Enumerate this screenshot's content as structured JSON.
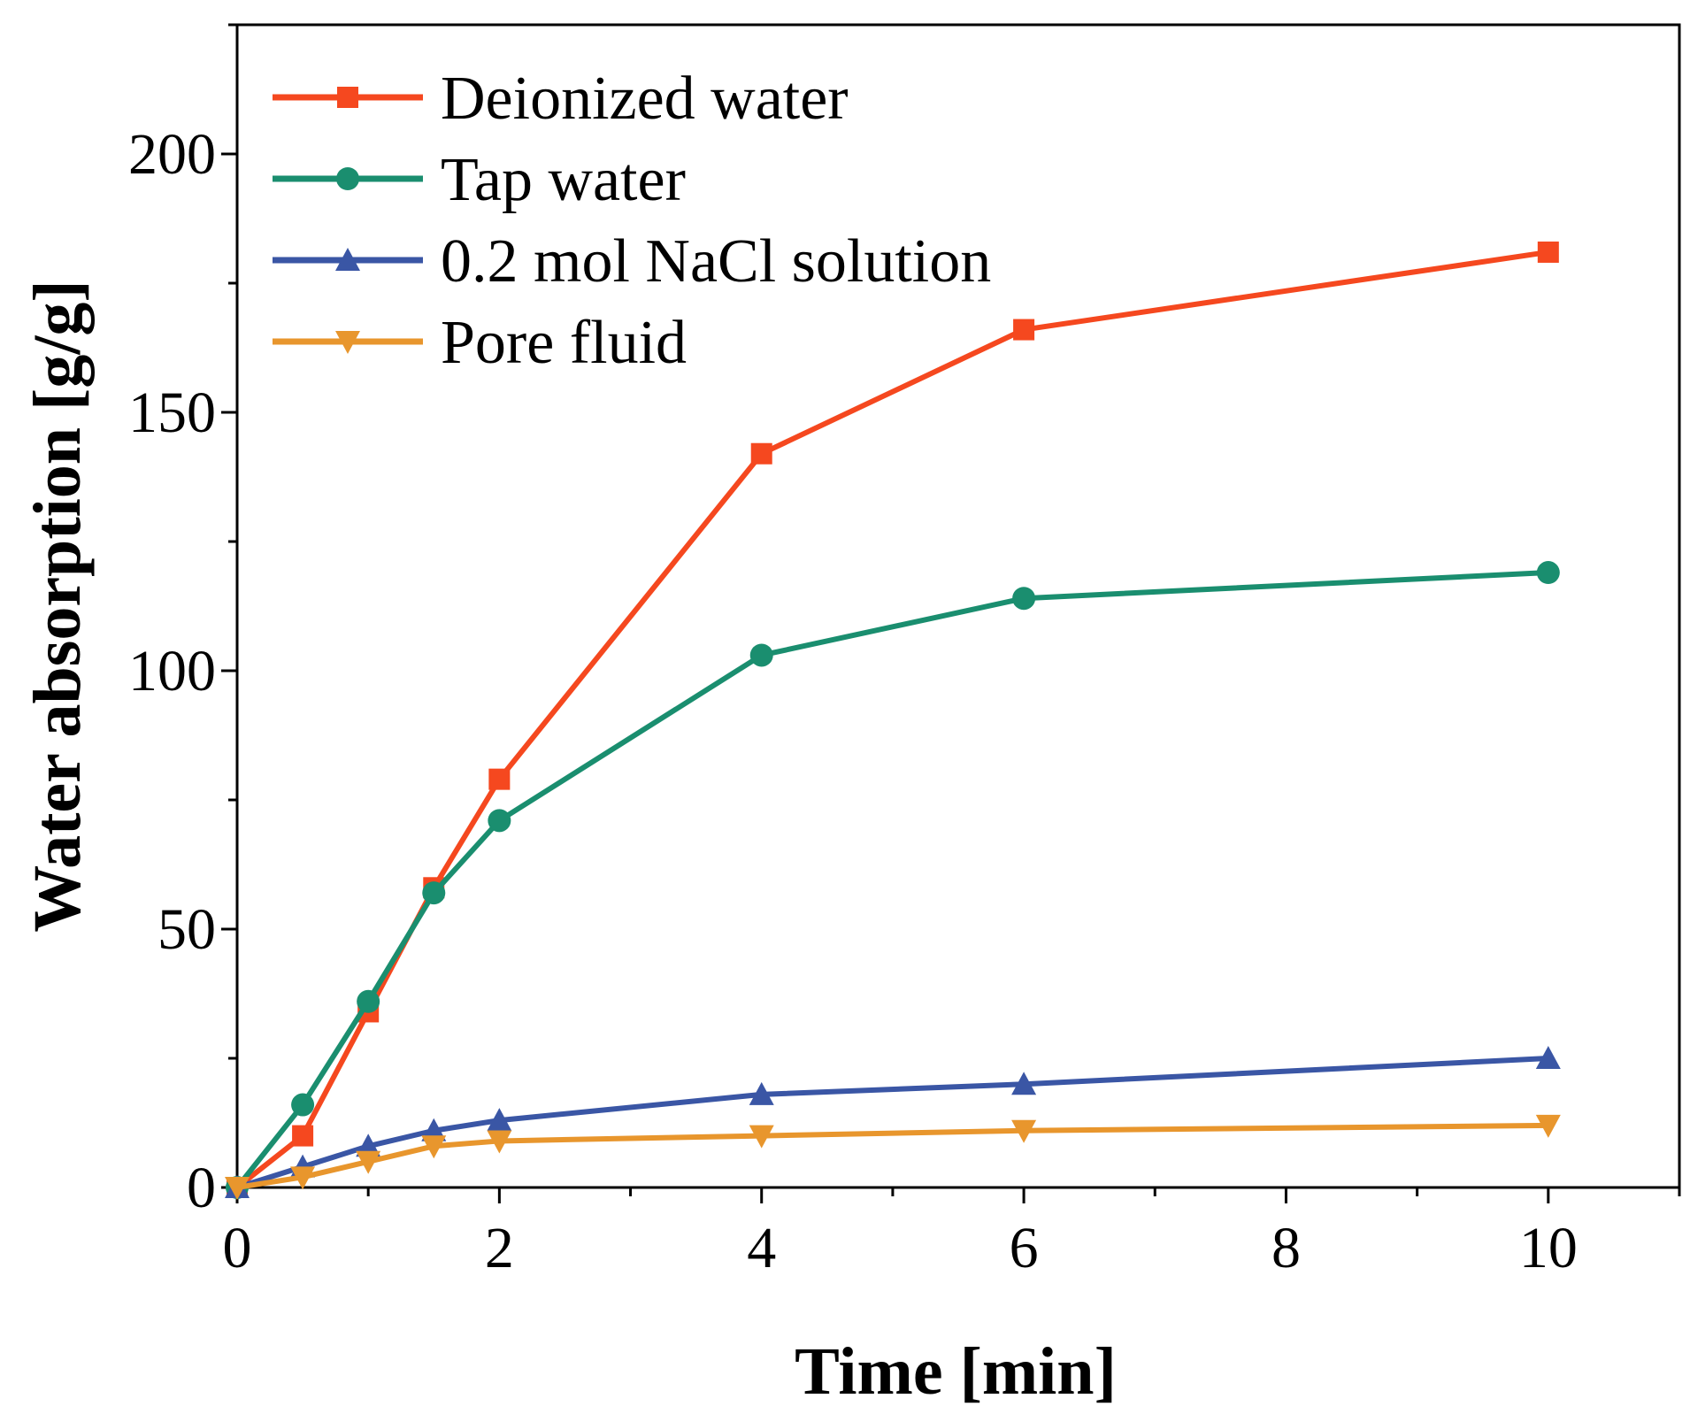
{
  "chart_data": {
    "type": "line",
    "title": "",
    "xlabel": "Time [min]",
    "ylabel": "Water absorption [g/g]",
    "xlim": [
      0,
      11
    ],
    "ylim": [
      0,
      225
    ],
    "xticks": [
      0,
      2,
      4,
      6,
      8,
      10
    ],
    "yticks": [
      0,
      50,
      100,
      150,
      200
    ],
    "grid": false,
    "legend_position": "top-left",
    "series": [
      {
        "name": "Deionized water",
        "color": "#F5481F",
        "marker": "square",
        "x": [
          0,
          0.5,
          1,
          1.5,
          2,
          4,
          6,
          10
        ],
        "y": [
          0,
          10,
          34,
          58,
          79,
          142,
          166,
          181
        ]
      },
      {
        "name": "Tap water",
        "color": "#1A8E6F",
        "marker": "circle",
        "x": [
          0,
          0.5,
          1,
          1.5,
          2,
          4,
          6,
          10
        ],
        "y": [
          0,
          16,
          36,
          57,
          71,
          103,
          114,
          119
        ]
      },
      {
        "name": "0.2 mol NaCl solution",
        "color": "#3A56A5",
        "marker": "triangle-up",
        "x": [
          0,
          0.5,
          1,
          1.5,
          2,
          4,
          6,
          10
        ],
        "y": [
          0,
          4,
          8,
          11,
          13,
          18,
          20,
          25
        ]
      },
      {
        "name": "Pore fluid",
        "color": "#E8962D",
        "marker": "triangle-down",
        "x": [
          0,
          0.5,
          1,
          1.5,
          2,
          4,
          6,
          10
        ],
        "y": [
          0,
          2,
          5,
          8,
          9,
          10,
          11,
          12
        ]
      }
    ]
  }
}
